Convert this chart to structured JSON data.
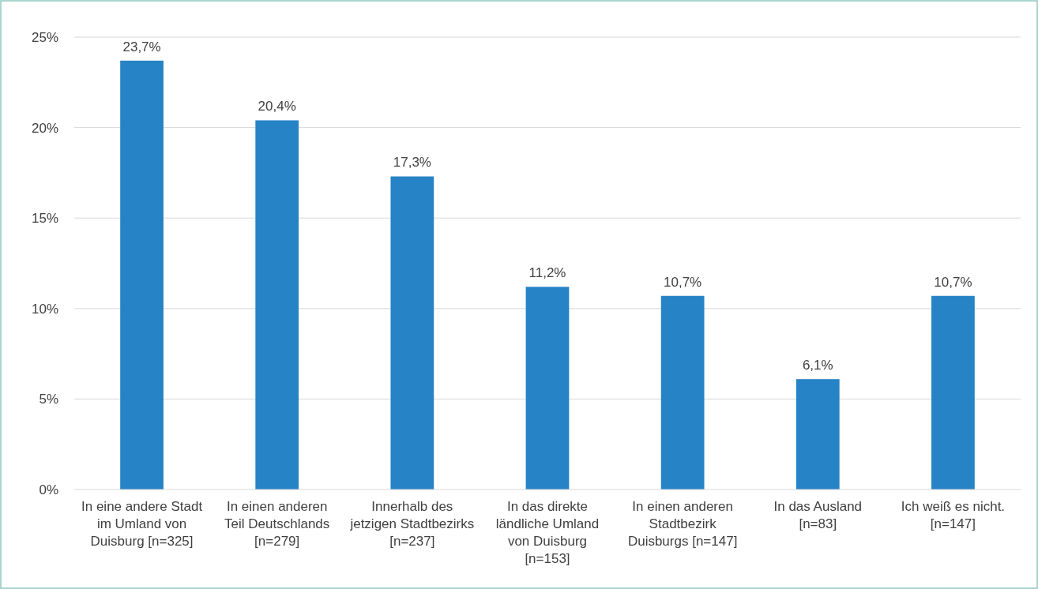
{
  "chart_data": {
    "type": "bar",
    "categories": [
      "In eine andere Stadt\nim Umland von\nDuisburg [n=325]",
      "In einen anderen\nTeil Deutschlands\n[n=279]",
      "Innerhalb des\njetzigen Stadtbezirks\n[n=237]",
      "In das direkte\nländliche Umland\nvon Duisburg\n[n=153]",
      "In einen anderen\nStadtbezirk\nDuisburgs [n=147]",
      "In das Ausland\n[n=83]",
      "Ich weiß es nicht.\n[n=147]"
    ],
    "values": [
      23.7,
      20.4,
      17.3,
      11.2,
      10.7,
      6.1,
      10.7
    ],
    "value_labels": [
      "23,7%",
      "20,4%",
      "17,3%",
      "11,2%",
      "10,7%",
      "6,1%",
      "10,7%"
    ],
    "color": "#2683c6",
    "ylim": [
      0,
      25
    ],
    "yticks": [
      {
        "value": 0,
        "label": "0%"
      },
      {
        "value": 5,
        "label": "5%"
      },
      {
        "value": 10,
        "label": "10%"
      },
      {
        "value": 15,
        "label": "15%"
      },
      {
        "value": 20,
        "label": "20%"
      },
      {
        "value": 25,
        "label": "25%"
      }
    ],
    "grid": "y"
  }
}
